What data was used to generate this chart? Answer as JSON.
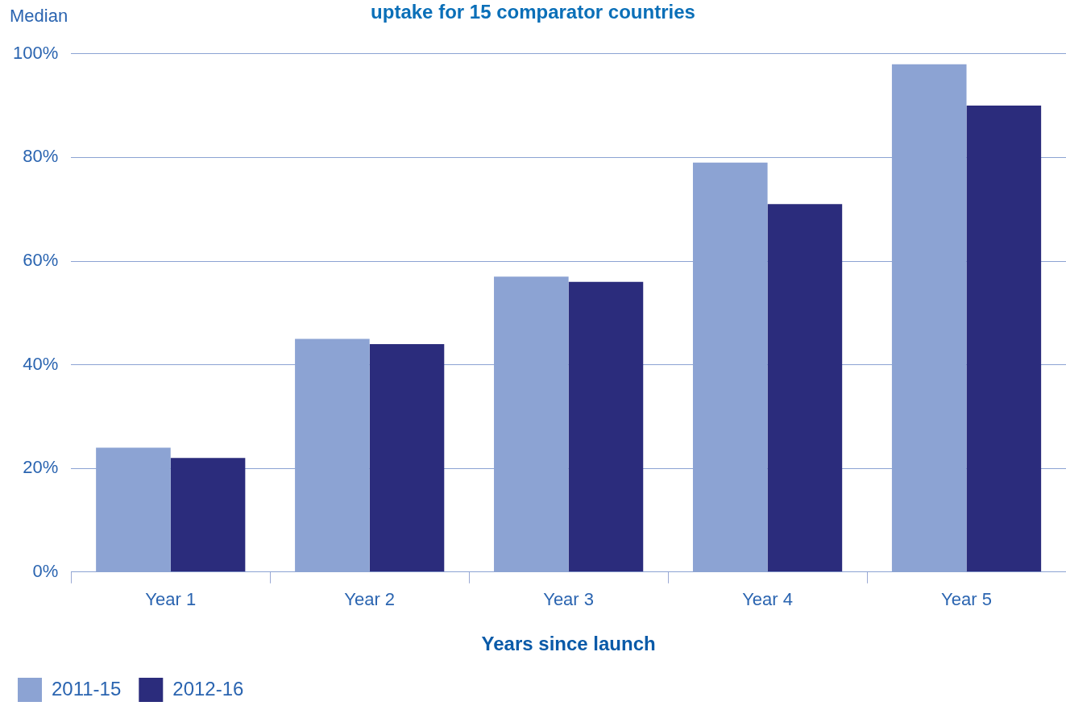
{
  "chart_data": {
    "type": "bar",
    "title": "uptake for 15 comparator countries",
    "xlabel": "Years since launch",
    "ylabel": "Median",
    "categories": [
      "Year 1",
      "Year 2",
      "Year 3",
      "Year 4",
      "Year 5"
    ],
    "series": [
      {
        "name": "2011-15",
        "color": "#8ca3d3",
        "values": [
          24,
          45,
          57,
          79,
          98
        ]
      },
      {
        "name": "2012-16",
        "color": "#2b2c7c",
        "values": [
          22,
          44,
          56,
          71,
          90
        ]
      }
    ],
    "ylim": [
      0,
      100
    ],
    "yticks": [
      {
        "value": 0,
        "label": "0%"
      },
      {
        "value": 20,
        "label": "20%"
      },
      {
        "value": 40,
        "label": "40%"
      },
      {
        "value": 60,
        "label": "60%"
      },
      {
        "value": 80,
        "label": "80%"
      },
      {
        "value": 100,
        "label": "100%"
      }
    ],
    "grid": "y",
    "legend": "bottom left"
  }
}
